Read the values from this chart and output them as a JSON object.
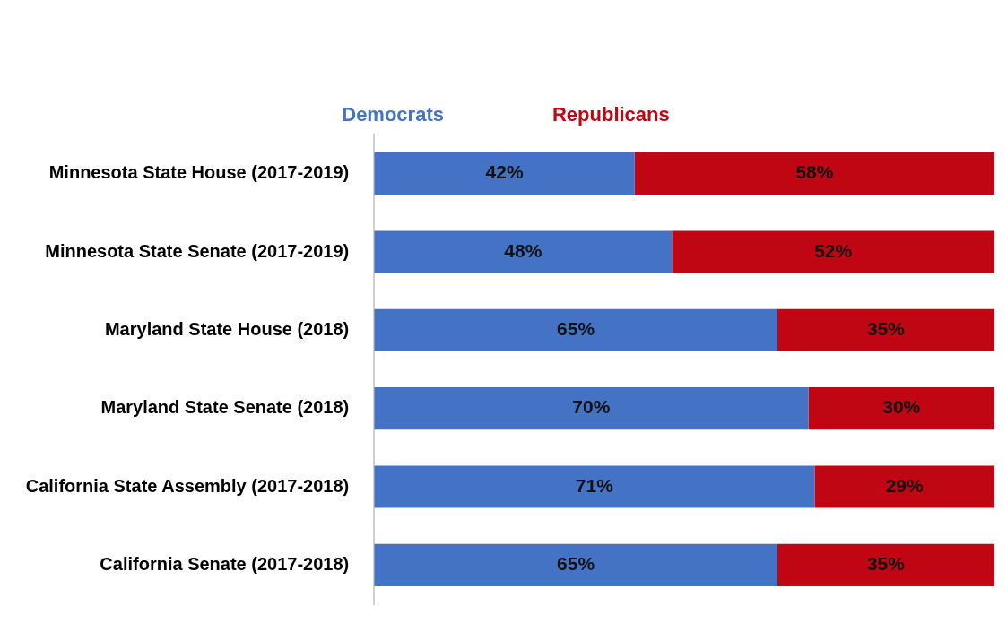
{
  "chart_data": {
    "type": "bar",
    "orientation": "horizontal",
    "stacked": true,
    "legend": "top",
    "categories": [
      "Minnesota State House (2017-2019)",
      "Minnesota State Senate (2017-2019)",
      "Maryland State House (2018)",
      "Maryland State Senate (2018)",
      "California State Assembly (2017-2018)",
      "California Senate (2017-2018)"
    ],
    "series": [
      {
        "name": "Democrats",
        "color": "#4472c4",
        "values": [
          42,
          48,
          65,
          70,
          71,
          65
        ],
        "value_labels": [
          "42%",
          "48%",
          "65%",
          "70%",
          "71%",
          "65%"
        ]
      },
      {
        "name": "Republicans",
        "color": "#c00613",
        "values": [
          58,
          52,
          35,
          30,
          29,
          35
        ],
        "value_labels": [
          "58%",
          "52%",
          "35%",
          "30%",
          "29%",
          "35%"
        ]
      }
    ]
  }
}
